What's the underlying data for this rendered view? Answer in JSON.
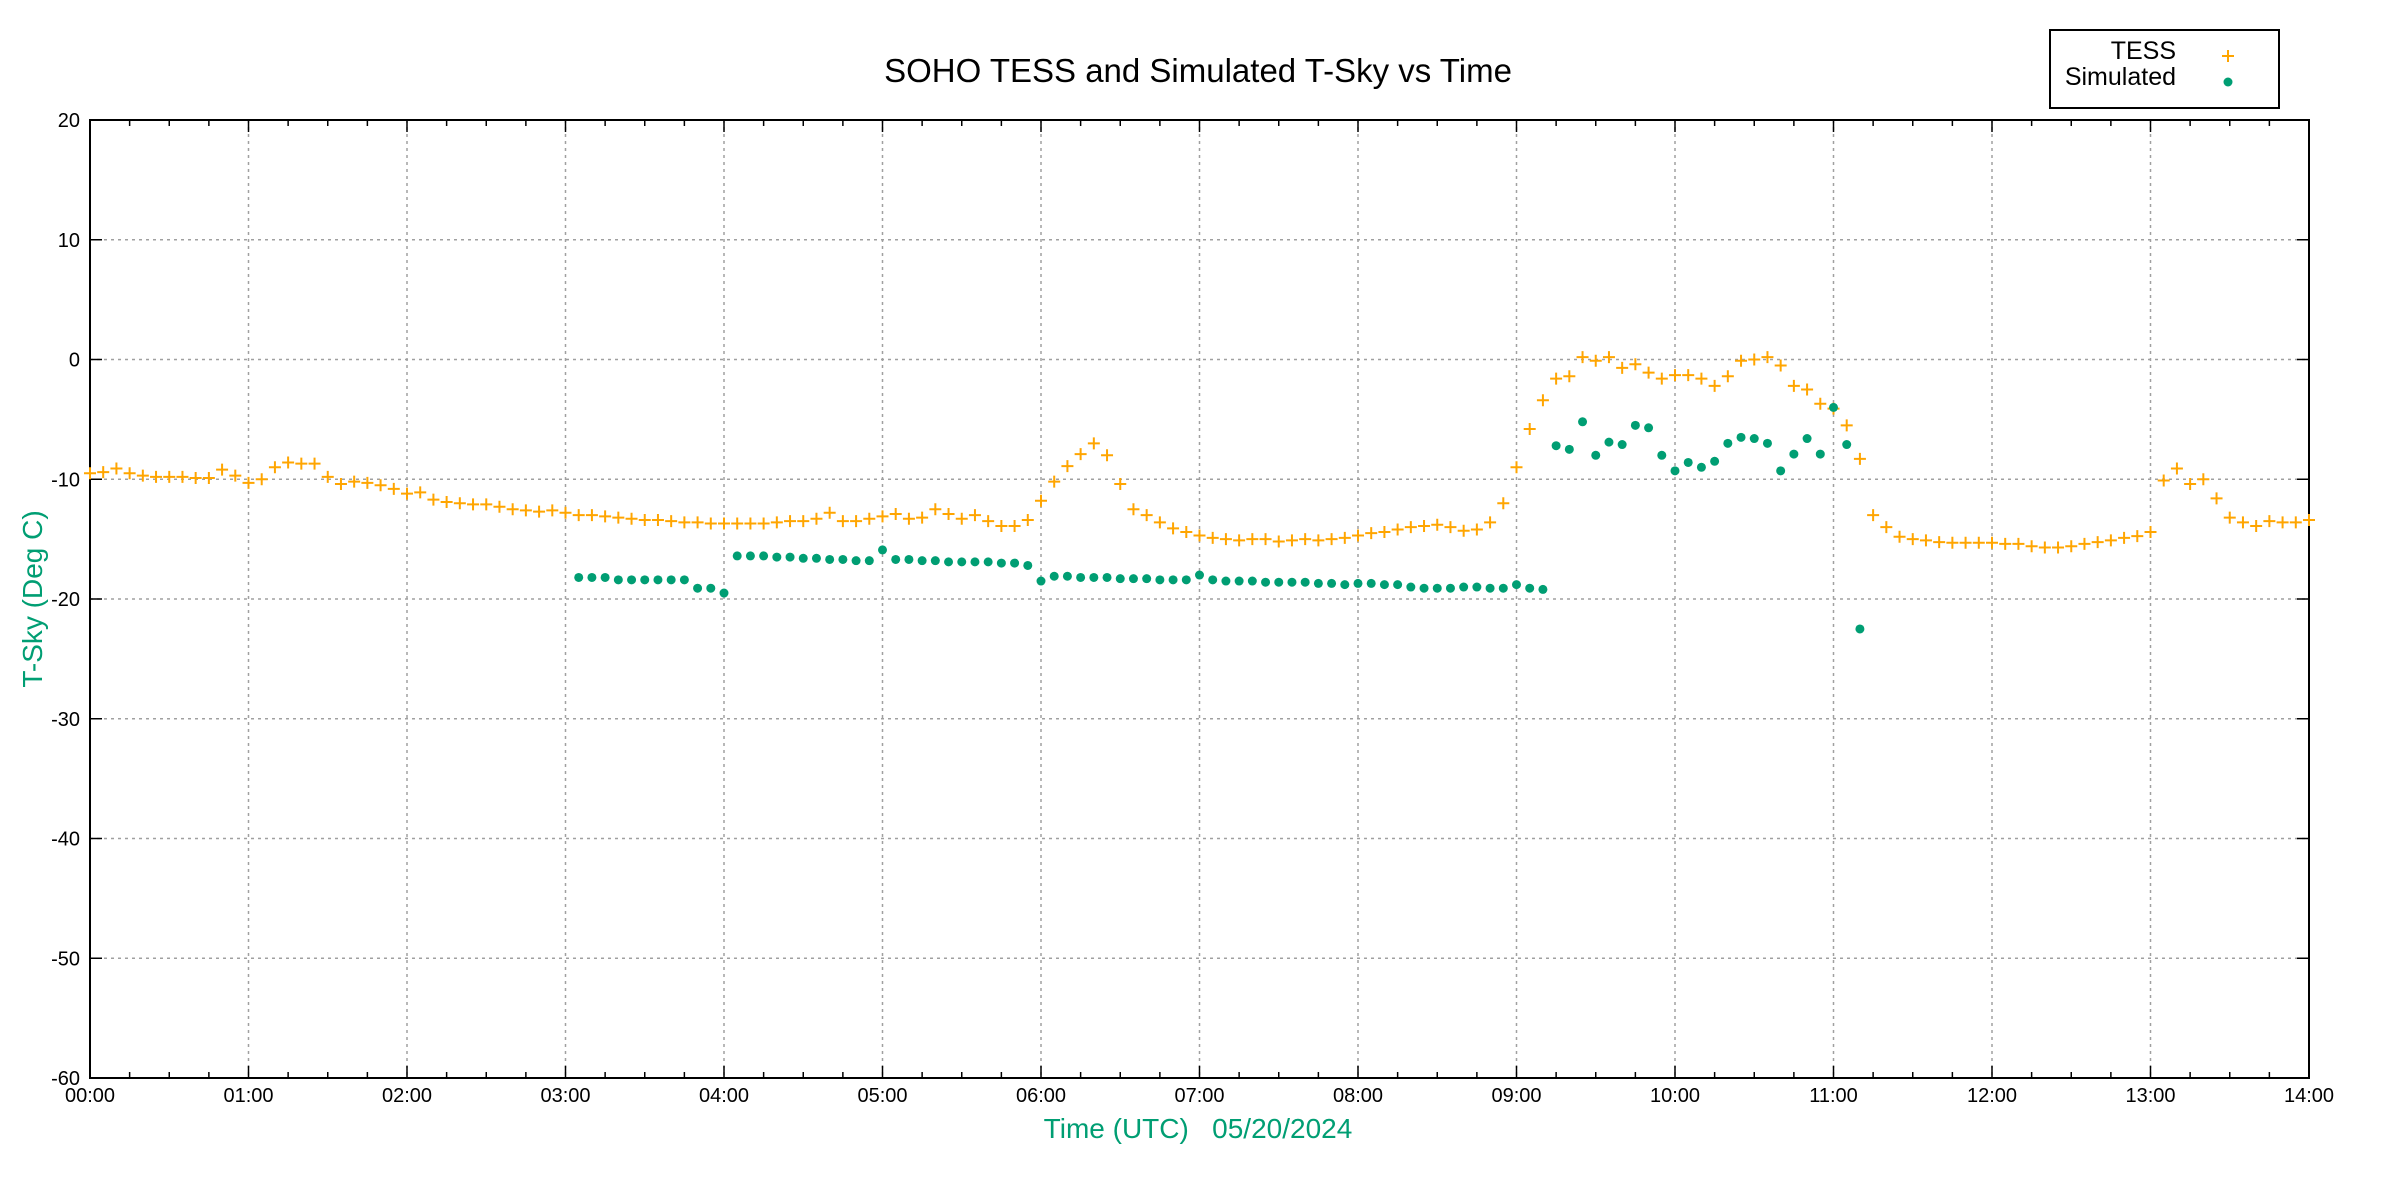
{
  "chart_data": {
    "type": "scatter",
    "title": "SOHO TESS and Simulated T-Sky vs Time",
    "xlabel": "Time (UTC)   05/20/2024",
    "ylabel": "T-Sky (Deg C)",
    "xlim": [
      "00:00",
      "14:00"
    ],
    "ylim": [
      -60,
      20
    ],
    "x_ticks": [
      "00:00",
      "01:00",
      "02:00",
      "03:00",
      "04:00",
      "05:00",
      "06:00",
      "07:00",
      "08:00",
      "09:00",
      "10:00",
      "11:00",
      "12:00",
      "13:00",
      "14:00"
    ],
    "y_ticks": [
      20,
      10,
      0,
      -10,
      -20,
      -30,
      -40,
      -50,
      -60
    ],
    "grid": true,
    "legend": "top-right",
    "colors": {
      "TESS": "#ffa500",
      "Simulated": "#009e73",
      "axis_label": "#009e73",
      "grid": "#a0a0a0"
    },
    "series": [
      {
        "name": "TESS",
        "marker": "plus",
        "x": [
          "00:00",
          "00:05",
          "00:10",
          "00:15",
          "00:20",
          "00:25",
          "00:30",
          "00:35",
          "00:40",
          "00:45",
          "00:50",
          "00:55",
          "01:00",
          "01:05",
          "01:10",
          "01:15",
          "01:20",
          "01:25",
          "01:30",
          "01:35",
          "01:40",
          "01:45",
          "01:50",
          "01:55",
          "02:00",
          "02:05",
          "02:10",
          "02:15",
          "02:20",
          "02:25",
          "02:30",
          "02:35",
          "02:40",
          "02:45",
          "02:50",
          "02:55",
          "03:00",
          "03:05",
          "03:10",
          "03:15",
          "03:20",
          "03:25",
          "03:30",
          "03:35",
          "03:40",
          "03:45",
          "03:50",
          "03:55",
          "04:00",
          "04:05",
          "04:10",
          "04:15",
          "04:20",
          "04:25",
          "04:30",
          "04:35",
          "04:40",
          "04:45",
          "04:50",
          "04:55",
          "05:00",
          "05:05",
          "05:10",
          "05:15",
          "05:20",
          "05:25",
          "05:30",
          "05:35",
          "05:40",
          "05:45",
          "05:50",
          "05:55",
          "06:00",
          "06:05",
          "06:10",
          "06:15",
          "06:20",
          "06:25",
          "06:30",
          "06:35",
          "06:40",
          "06:45",
          "06:50",
          "06:55",
          "07:00",
          "07:05",
          "07:10",
          "07:15",
          "07:20",
          "07:25",
          "07:30",
          "07:35",
          "07:40",
          "07:45",
          "07:50",
          "07:55",
          "08:00",
          "08:05",
          "08:10",
          "08:15",
          "08:20",
          "08:25",
          "08:30",
          "08:35",
          "08:40",
          "08:45",
          "08:50",
          "08:55",
          "09:00",
          "09:05",
          "09:10",
          "09:15",
          "09:20",
          "09:25",
          "09:30",
          "09:35",
          "09:40",
          "09:45",
          "09:50",
          "09:55",
          "10:00",
          "10:05",
          "10:10",
          "10:15",
          "10:20",
          "10:25",
          "10:30",
          "10:35",
          "10:40",
          "10:45",
          "10:50",
          "10:55",
          "11:00",
          "11:05",
          "11:10",
          "11:15",
          "11:20",
          "11:25",
          "11:30",
          "11:35",
          "11:40",
          "11:45",
          "11:50",
          "11:55",
          "12:00",
          "12:05",
          "12:10",
          "12:15",
          "12:20",
          "12:25",
          "12:30",
          "12:35",
          "12:40",
          "12:45",
          "12:50",
          "12:55",
          "13:00",
          "13:05",
          "13:10",
          "13:15",
          "13:20",
          "13:25",
          "13:30",
          "13:35",
          "13:40",
          "13:45",
          "13:50",
          "13:55",
          "14:00"
        ],
        "y": [
          -9.5,
          -9.4,
          -9.1,
          -9.5,
          -9.7,
          -9.8,
          -9.8,
          -9.8,
          -9.9,
          -9.9,
          -9.2,
          -9.7,
          -10.3,
          -10.0,
          -9.0,
          -8.6,
          -8.7,
          -8.7,
          -9.8,
          -10.4,
          -10.2,
          -10.3,
          -10.5,
          -10.8,
          -11.2,
          -11.1,
          -11.7,
          -11.9,
          -12.0,
          -12.1,
          -12.1,
          -12.3,
          -12.5,
          -12.6,
          -12.7,
          -12.6,
          -12.8,
          -13.0,
          -13.0,
          -13.1,
          -13.2,
          -13.3,
          -13.4,
          -13.4,
          -13.5,
          -13.6,
          -13.6,
          -13.7,
          -13.7,
          -13.7,
          -13.7,
          -13.7,
          -13.6,
          -13.5,
          -13.5,
          -13.3,
          -12.8,
          -13.5,
          -13.5,
          -13.3,
          -13.1,
          -12.9,
          -13.3,
          -13.2,
          -12.5,
          -12.9,
          -13.3,
          -13.0,
          -13.5,
          -13.9,
          -13.9,
          -13.4,
          -11.8,
          -10.2,
          -8.9,
          -7.9,
          -7.0,
          -8.0,
          -10.4,
          -12.5,
          -13.0,
          -13.6,
          -14.1,
          -14.4,
          -14.7,
          -14.9,
          -15.0,
          -15.1,
          -15.0,
          -15.0,
          -15.2,
          -15.1,
          -15.0,
          -15.1,
          -15.0,
          -14.9,
          -14.7,
          -14.5,
          -14.4,
          -14.2,
          -14.0,
          -13.9,
          -13.8,
          -14.0,
          -14.3,
          -14.2,
          -13.6,
          -12.0,
          -9.0,
          -5.8,
          -3.4,
          -1.6,
          -1.4,
          0.2,
          -0.1,
          0.2,
          -0.7,
          -0.4,
          -1.1,
          -1.6,
          -1.3,
          -1.3,
          -1.6,
          -2.2,
          -1.4,
          -0.1,
          0.0,
          0.2,
          -0.5,
          -2.2,
          -2.5,
          -3.7,
          -4.1,
          -5.5,
          -8.3,
          -13.0,
          -14.0,
          -14.8,
          -15.0,
          -15.1,
          -15.25,
          -15.3,
          -15.3,
          -15.3,
          -15.3,
          -15.4,
          -15.4,
          -15.6,
          -15.7,
          -15.7,
          -15.6,
          -15.4,
          -15.25,
          -15.1,
          -14.9,
          -14.75,
          -14.4,
          -10.1,
          -9.1,
          -10.4,
          -10.0,
          -11.6,
          -13.2,
          -13.6,
          -13.9,
          -13.5,
          -13.6,
          -13.6,
          -13.4
        ]
      },
      {
        "name": "Simulated",
        "marker": "dot",
        "x": [
          "03:05",
          "03:10",
          "03:15",
          "03:20",
          "03:25",
          "03:30",
          "03:35",
          "03:40",
          "03:45",
          "03:50",
          "03:55",
          "04:00",
          "04:05",
          "04:10",
          "04:15",
          "04:20",
          "04:25",
          "04:30",
          "04:35",
          "04:40",
          "04:45",
          "04:50",
          "04:55",
          "05:00",
          "05:05",
          "05:10",
          "05:15",
          "05:20",
          "05:25",
          "05:30",
          "05:35",
          "05:40",
          "05:45",
          "05:50",
          "05:55",
          "06:00",
          "06:05",
          "06:10",
          "06:15",
          "06:20",
          "06:25",
          "06:30",
          "06:35",
          "06:40",
          "06:45",
          "06:50",
          "06:55",
          "07:00",
          "07:05",
          "07:10",
          "07:15",
          "07:20",
          "07:25",
          "07:30",
          "07:35",
          "07:40",
          "07:45",
          "07:50",
          "07:55",
          "08:00",
          "08:05",
          "08:10",
          "08:15",
          "08:20",
          "08:25",
          "08:30",
          "08:35",
          "08:40",
          "08:45",
          "08:50",
          "08:55",
          "09:00",
          "09:05",
          "09:10",
          "09:15",
          "09:20",
          "09:25",
          "09:30",
          "09:35",
          "09:40",
          "09:45",
          "09:50",
          "09:55",
          "10:00",
          "10:05",
          "10:10",
          "10:15",
          "10:20",
          "10:25",
          "10:30",
          "10:35",
          "10:40",
          "10:45",
          "10:50",
          "10:55",
          "11:00",
          "11:05",
          "11:10"
        ],
        "y": [
          -18.2,
          -18.2,
          -18.2,
          -18.4,
          -18.4,
          -18.4,
          -18.4,
          -18.4,
          -18.4,
          -19.1,
          -19.1,
          -19.5,
          -16.4,
          -16.4,
          -16.4,
          -16.5,
          -16.5,
          -16.6,
          -16.6,
          -16.7,
          -16.7,
          -16.8,
          -16.8,
          -15.9,
          -16.7,
          -16.7,
          -16.8,
          -16.8,
          -16.9,
          -16.9,
          -16.9,
          -16.9,
          -17.0,
          -17.0,
          -17.2,
          -18.5,
          -18.1,
          -18.1,
          -18.2,
          -18.2,
          -18.2,
          -18.3,
          -18.3,
          -18.3,
          -18.4,
          -18.4,
          -18.4,
          -18.0,
          -18.4,
          -18.5,
          -18.5,
          -18.5,
          -18.6,
          -18.6,
          -18.6,
          -18.6,
          -18.7,
          -18.7,
          -18.8,
          -18.7,
          -18.7,
          -18.8,
          -18.8,
          -19.0,
          -19.1,
          -19.1,
          -19.1,
          -19.0,
          -19.0,
          -19.1,
          -19.1,
          -18.8,
          -19.1,
          -19.2,
          -7.2,
          -7.5,
          -5.2,
          -8.0,
          -6.9,
          -7.1,
          -5.5,
          -5.7,
          -8.0,
          -9.3,
          -8.6,
          -9.0,
          -8.5,
          -7.0,
          -6.5,
          -6.6,
          -7.0,
          -9.3,
          -7.9,
          -6.6,
          -7.9,
          -4.0,
          -7.1,
          -22.5
        ]
      }
    ]
  }
}
